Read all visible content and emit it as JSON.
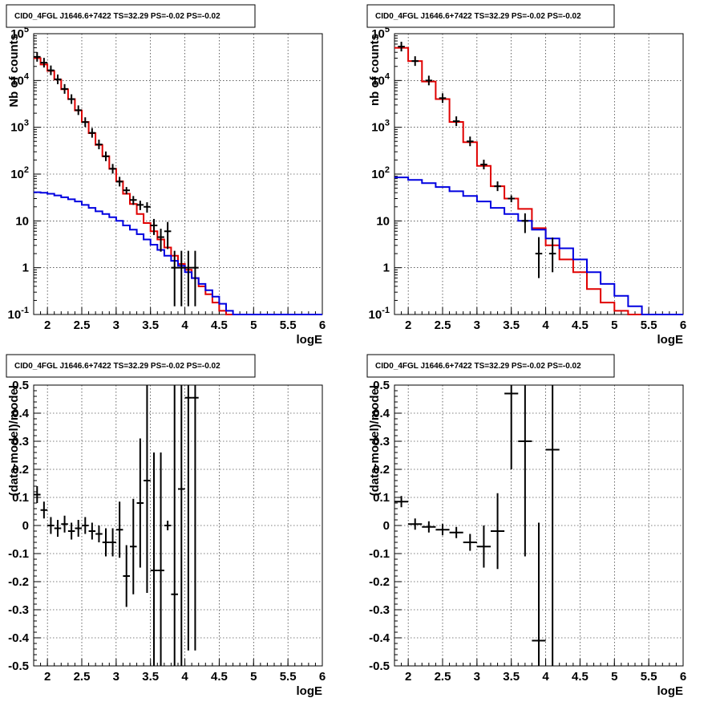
{
  "chart_data": [
    {
      "type": "line",
      "title": "CID0_4FGL J1646.6+7422 TS=32.29 PS=-0.02 PS=-0.02",
      "xlabel": "logE",
      "ylabel": "Nb of counts",
      "log_y": true,
      "xlim": [
        1.8,
        6
      ],
      "ylim": [
        0.1,
        100000
      ],
      "xticks": [
        "2",
        "2.5",
        "3",
        "3.5",
        "4",
        "4.5",
        "5",
        "5.5",
        "6"
      ],
      "yticks": [
        "10^-1",
        "1",
        "10",
        "10^2",
        "10^3",
        "10^4",
        "10^5"
      ],
      "grid": true,
      "series": [
        {
          "color": "#e00000",
          "kind": "step",
          "x_edges": [
            1.8,
            1.9,
            2.0,
            2.1,
            2.2,
            2.3,
            2.4,
            2.5,
            2.6,
            2.7,
            2.8,
            2.9,
            3.0,
            3.1,
            3.2,
            3.3,
            3.4,
            3.5,
            3.6,
            3.7,
            3.8,
            3.9,
            4.0,
            4.1,
            4.2,
            4.3,
            4.4,
            4.5,
            4.6,
            4.7,
            4.8,
            4.9,
            5.0,
            5.2,
            5.4,
            5.6,
            5.8,
            6.0
          ],
          "values": [
            30000,
            22000,
            16000,
            10500,
            6500,
            4000,
            2300,
            1300,
            750,
            420,
            240,
            130,
            70,
            38,
            23,
            14,
            9,
            6,
            4,
            2.7,
            1.8,
            1.2,
            0.9,
            0.6,
            0.4,
            0.27,
            0.18,
            0.12,
            0.1,
            0.1,
            0.1,
            0.1,
            0.1,
            0.1,
            0.1,
            0.1,
            0.1
          ]
        },
        {
          "color": "#0000e0",
          "kind": "step",
          "x_edges": [
            1.8,
            1.9,
            2.0,
            2.1,
            2.2,
            2.3,
            2.4,
            2.5,
            2.6,
            2.7,
            2.8,
            2.9,
            3.0,
            3.1,
            3.2,
            3.3,
            3.4,
            3.5,
            3.6,
            3.7,
            3.8,
            3.9,
            4.0,
            4.1,
            4.2,
            4.3,
            4.4,
            4.5,
            4.6,
            4.7,
            4.8,
            4.9,
            5.0,
            5.2,
            5.4,
            5.6,
            5.8,
            6.0
          ],
          "values": [
            41,
            40,
            38,
            35,
            32,
            29,
            26,
            22,
            19,
            16,
            14,
            12,
            10,
            8,
            6.5,
            5.2,
            4,
            3.1,
            2.4,
            1.8,
            1.4,
            1.1,
            0.8,
            0.6,
            0.45,
            0.33,
            0.24,
            0.17,
            0.12,
            0.1,
            0.1,
            0.1,
            0.1,
            0.1,
            0.1,
            0.1,
            0.1
          ]
        },
        {
          "color": "#000000",
          "kind": "points",
          "x": [
            1.85,
            1.95,
            2.05,
            2.15,
            2.25,
            2.35,
            2.45,
            2.55,
            2.65,
            2.75,
            2.85,
            2.95,
            3.05,
            3.15,
            3.25,
            3.35,
            3.45,
            3.55,
            3.65,
            3.75,
            3.85,
            3.95,
            4.05,
            4.15
          ],
          "y": [
            32000,
            24000,
            16500,
            10600,
            6600,
            4000,
            2320,
            1290,
            760,
            430,
            240,
            130,
            69,
            45,
            28,
            22,
            20,
            8,
            4.5,
            6,
            1,
            1,
            1,
            1
          ],
          "yerr_low": [
            0,
            0,
            0,
            0,
            0,
            0,
            0,
            0,
            0,
            0,
            0,
            0,
            0,
            8,
            6,
            5,
            5,
            3,
            2.3,
            3.5,
            0.85,
            0.85,
            0.85,
            0.85
          ],
          "yerr_high": [
            0,
            0,
            0,
            0,
            0,
            0,
            0,
            0,
            0,
            0,
            0,
            0,
            0,
            8,
            6,
            5,
            5,
            3,
            2.3,
            3.5,
            1.3,
            1.3,
            1.3,
            1.3
          ]
        }
      ]
    },
    {
      "type": "line",
      "title": "CID0_4FGL J1646.6+7422 TS=32.29 PS=-0.02 PS=-0.02",
      "xlabel": "logE",
      "ylabel": "nb of counts",
      "log_y": true,
      "xlim": [
        1.8,
        6
      ],
      "ylim": [
        0.1,
        100000
      ],
      "xticks": [
        "2",
        "2.5",
        "3",
        "3.5",
        "4",
        "4.5",
        "5",
        "5.5",
        "6"
      ],
      "yticks": [
        "10^-1",
        "1",
        "10",
        "10^2",
        "10^3",
        "10^4",
        "10^5"
      ],
      "grid": true,
      "series": [
        {
          "color": "#e00000",
          "kind": "step",
          "x_edges": [
            1.8,
            2.0,
            2.2,
            2.4,
            2.6,
            2.8,
            3.0,
            3.2,
            3.4,
            3.6,
            3.8,
            4.0,
            4.2,
            4.4,
            4.6,
            4.8,
            5.0,
            5.2,
            5.4,
            5.6,
            5.8,
            6.0
          ],
          "values": [
            50000,
            26000,
            9500,
            4000,
            1300,
            480,
            150,
            55,
            30,
            18,
            7,
            3,
            1.5,
            0.8,
            0.35,
            0.18,
            0.12,
            0.1,
            0.1,
            0.1,
            0.1
          ],
          "values_note": ""
        },
        {
          "color": "#0000e0",
          "kind": "step",
          "x_edges": [
            1.8,
            2.0,
            2.2,
            2.4,
            2.6,
            2.8,
            3.0,
            3.2,
            3.4,
            3.6,
            3.8,
            4.0,
            4.2,
            4.4,
            4.6,
            4.8,
            5.0,
            5.2,
            5.4,
            5.6,
            5.8,
            6.0
          ],
          "values": [
            85,
            75,
            64,
            53,
            43,
            34,
            26,
            19,
            14,
            10,
            6.5,
            4.2,
            2.6,
            1.5,
            0.8,
            0.45,
            0.25,
            0.15,
            0.1,
            0.1,
            0.1
          ]
        },
        {
          "color": "#000000",
          "kind": "points",
          "x": [
            1.9,
            2.1,
            2.3,
            2.5,
            2.7,
            2.9,
            3.1,
            3.3,
            3.5,
            3.7,
            3.9,
            4.1
          ],
          "y": [
            53000,
            26000,
            10000,
            4200,
            1350,
            500,
            160,
            55,
            30,
            10,
            2,
            2
          ],
          "yerr_low": [
            0,
            0,
            0,
            0,
            0,
            0,
            0,
            0,
            5,
            4.5,
            1.4,
            1.2
          ],
          "yerr_high": [
            0,
            0,
            0,
            0,
            0,
            0,
            0,
            0,
            5,
            4.5,
            2.5,
            2.4
          ]
        }
      ]
    },
    {
      "type": "scatter",
      "title": "CID0_4FGL J1646.6+7422 TS=32.29 PS=-0.02 PS=-0.02",
      "xlabel": "logE",
      "ylabel": "(data-model)/model",
      "xlim": [
        1.8,
        6
      ],
      "ylim": [
        -0.5,
        0.5
      ],
      "xticks": [
        "2",
        "2.5",
        "3",
        "3.5",
        "4",
        "4.5",
        "5",
        "5.5",
        "6"
      ],
      "yticks": [
        "-0.5",
        "-0.4",
        "-0.3",
        "-0.2",
        "-0.1",
        "0",
        "0.1",
        "0.2",
        "0.3",
        "0.4",
        "0.5"
      ],
      "grid": true,
      "series": [
        {
          "color": "#000000",
          "x": [
            1.85,
            1.95,
            2.05,
            2.15,
            2.25,
            2.35,
            2.45,
            2.55,
            2.65,
            2.75,
            2.85,
            2.95,
            3.05,
            3.15,
            3.25,
            3.35,
            3.45,
            3.55,
            3.65,
            3.75,
            3.85,
            3.95,
            4.05,
            4.15
          ],
          "y": [
            0.11,
            0.055,
            0.0,
            -0.01,
            0.005,
            -0.02,
            -0.01,
            0.0,
            -0.02,
            -0.03,
            -0.06,
            -0.06,
            -0.015,
            -0.18,
            -0.075,
            0.08,
            0.16,
            -0.16,
            -0.16,
            0.0,
            -0.245,
            0.13,
            0.455,
            0.455
          ],
          "xerr": [
            0.05,
            0.05,
            0.05,
            0.05,
            0.05,
            0.05,
            0.05,
            0.05,
            0.05,
            0.05,
            0.05,
            0.05,
            0.05,
            0.05,
            0.05,
            0.05,
            0.05,
            0.05,
            0.05,
            0.05,
            0.05,
            0.05,
            0.05,
            0.05
          ],
          "yerr_low": [
            0.03,
            0.03,
            0.03,
            0.03,
            0.03,
            0.03,
            0.03,
            0.03,
            0.03,
            0.03,
            0.05,
            0.05,
            0.1,
            0.11,
            0.17,
            0.23,
            0.4,
            0.4,
            0.4,
            0.0,
            0.4,
            0.7,
            0.9,
            0.9
          ],
          "yerr_high": [
            0.03,
            0.03,
            0.03,
            0.03,
            0.03,
            0.03,
            0.03,
            0.03,
            0.03,
            0.03,
            0.05,
            0.05,
            0.1,
            0.11,
            0.17,
            0.23,
            0.4,
            0.42,
            0.42,
            0.0,
            0.75,
            0.9,
            0.9,
            0.9
          ]
        }
      ]
    },
    {
      "type": "scatter",
      "title": "CID0_4FGL J1646.6+7422 TS=32.29 PS=-0.02 PS=-0.02",
      "xlabel": "logE",
      "ylabel": "(data-model)/model",
      "xlim": [
        1.8,
        6
      ],
      "ylim": [
        -0.5,
        0.5
      ],
      "xticks": [
        "2",
        "2.5",
        "3",
        "3.5",
        "4",
        "4.5",
        "5",
        "5.5",
        "6"
      ],
      "yticks": [
        "-0.5",
        "-0.4",
        "-0.3",
        "-0.2",
        "-0.1",
        "0",
        "0.1",
        "0.2",
        "0.3",
        "0.4",
        "0.5"
      ],
      "grid": true,
      "series": [
        {
          "color": "#000000",
          "x": [
            1.9,
            2.1,
            2.3,
            2.5,
            2.7,
            2.9,
            3.1,
            3.3,
            3.5,
            3.7,
            3.9,
            4.1
          ],
          "y": [
            0.085,
            0.005,
            -0.005,
            -0.015,
            -0.025,
            -0.06,
            -0.075,
            -0.02,
            0.47,
            0.3,
            -0.41,
            0.27
          ],
          "xerr": [
            0.1,
            0.1,
            0.1,
            0.1,
            0.1,
            0.1,
            0.1,
            0.1,
            0.1,
            0.1,
            0.1,
            0.1
          ],
          "yerr_low": [
            0.02,
            0.02,
            0.02,
            0.02,
            0.02,
            0.03,
            0.075,
            0.135,
            0.27,
            0.41,
            0.41,
            0.8
          ],
          "yerr_high": [
            0.02,
            0.02,
            0.02,
            0.02,
            0.02,
            0.03,
            0.075,
            0.135,
            0.05,
            0.2,
            0.42,
            0.23
          ]
        }
      ]
    }
  ]
}
